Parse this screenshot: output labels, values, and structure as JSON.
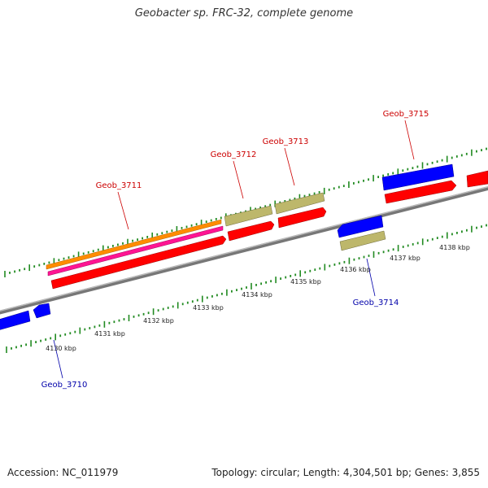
{
  "title": "Geobacter sp. FRC-32, complete genome",
  "footer": {
    "accession": "Accession: NC_011979",
    "info": "Topology: circular; Length: 4,304,501 bp; Genes: 3,855"
  },
  "scale": {
    "labels": [
      "4130 kbp",
      "4131 kbp",
      "4132 kbp",
      "4133 kbp",
      "4134 kbp",
      "4135 kbp",
      "4136 kbp",
      "4137 kbp",
      "4138 kbp"
    ]
  },
  "genes": {
    "top_strand": [
      "Geob_3711",
      "Geob_3712",
      "Geob_3713",
      "Geob_3715"
    ],
    "bottom_strand": [
      "Geob_3710",
      "Geob_3714"
    ]
  },
  "colors": {
    "forward_label": "#cc0000",
    "reverse_label": "#0000aa",
    "cds_red": "#ff0000",
    "gene_blue": "#0000ff",
    "gene_khaki": "#bdb76b",
    "orange": "#ff8c00",
    "magenta": "#ff1493",
    "tick_green": "#228b22",
    "backbone": "#777777"
  }
}
